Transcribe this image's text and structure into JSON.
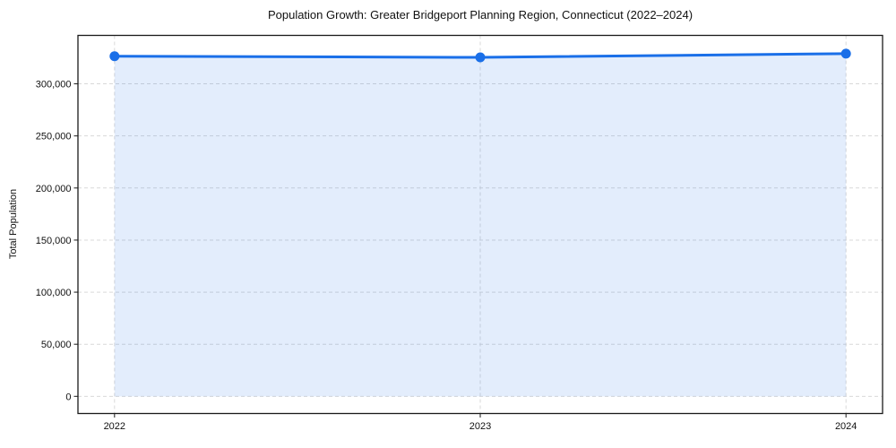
{
  "chart_data": {
    "type": "area",
    "title": "Population Growth: Greater Bridgeport Planning Region, Connecticut (2022–2024)",
    "xlabel": "",
    "ylabel": "Total Population",
    "x": [
      2022,
      2023,
      2024
    ],
    "series": [
      {
        "name": "Total Population",
        "values": [
          326500,
          325400,
          329000
        ]
      }
    ],
    "xticks": {
      "values": [
        2022,
        2023,
        2024
      ],
      "labels": [
        "2022",
        "2023",
        "2024"
      ]
    },
    "yticks": {
      "values": [
        0,
        50000,
        100000,
        150000,
        200000,
        250000,
        300000
      ],
      "labels": [
        "0",
        "50,000",
        "100,000",
        "150,000",
        "200,000",
        "250,000",
        "300,000"
      ]
    },
    "xlim": [
      2021.9,
      2024.1
    ],
    "ylim": [
      -16500,
      346500
    ],
    "grid": true,
    "grid_style": "dashed",
    "legend": "none",
    "marker": "circle",
    "marker_size": 5.5,
    "line_width": 3,
    "colors": {
      "line": "#1a6fe8",
      "marker": "#1a6fe8",
      "fill": "rgba(26,111,232,0.12)",
      "grid": "#d9d9d9",
      "frame": "#1a1a1a",
      "text": "#111111",
      "background": "#ffffff"
    }
  }
}
